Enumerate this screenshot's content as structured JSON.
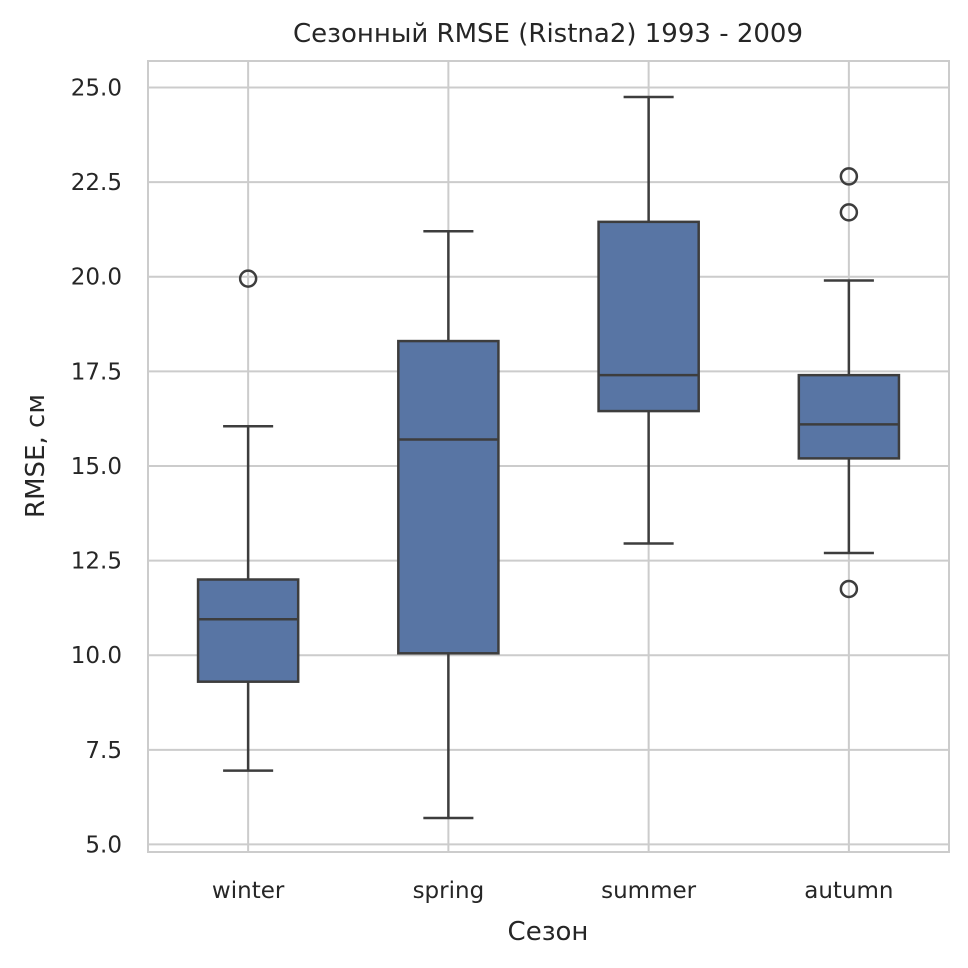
{
  "chart_data": {
    "type": "box",
    "title": "Сезонный RMSE (Ristna2) 1993 - 2009",
    "xlabel": "Сезон",
    "ylabel": "RMSE, см",
    "ylim": [
      4.8,
      25.7
    ],
    "yticks": [
      "5.0",
      "7.5",
      "10.0",
      "12.5",
      "15.0",
      "17.5",
      "20.0",
      "22.5",
      "25.0"
    ],
    "grid": true,
    "box_color": "#5875a4",
    "edge_color": "#3d3d3d",
    "categories": [
      "winter",
      "spring",
      "summer",
      "autumn"
    ],
    "boxes": [
      {
        "category": "winter",
        "whisker_low": 6.95,
        "q1": 9.3,
        "median": 10.95,
        "q3": 12.0,
        "whisker_high": 16.05,
        "outliers": [
          19.95
        ]
      },
      {
        "category": "spring",
        "whisker_low": 5.7,
        "q1": 10.05,
        "median": 15.7,
        "q3": 18.3,
        "whisker_high": 21.2,
        "outliers": []
      },
      {
        "category": "summer",
        "whisker_low": 12.95,
        "q1": 16.45,
        "median": 17.4,
        "q3": 21.45,
        "whisker_high": 24.75,
        "outliers": []
      },
      {
        "category": "autumn",
        "whisker_low": 12.7,
        "q1": 15.2,
        "median": 16.1,
        "q3": 17.4,
        "whisker_high": 19.9,
        "outliers": [
          22.65,
          21.7,
          11.75
        ]
      }
    ]
  }
}
